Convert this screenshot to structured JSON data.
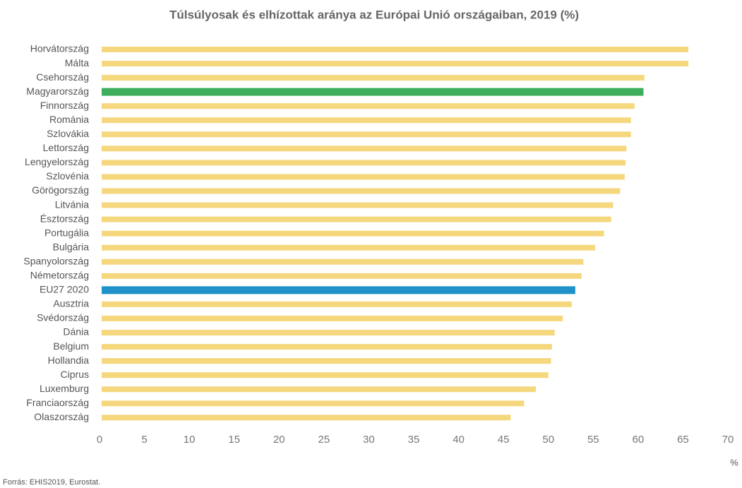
{
  "chart_data": {
    "type": "hbar",
    "title": "Túlsúlyosak és elhízottak aránya az Európai Unió országaiban, 2019 (%)",
    "categories": [
      "Horvátország",
      "Málta",
      "Csehország",
      "Magyarország",
      "Finnország",
      "Románia",
      "Szlovákia",
      "Lettország",
      "Lengyelország",
      "Szlovénia",
      "Görögország",
      "Litvánia",
      "Észtország",
      "Portugália",
      "Bulgária",
      "Spanyolország",
      "Németország",
      "EU27 2020",
      "Ausztria",
      "Svédország",
      "Dánia",
      "Belgium",
      "Hollandia",
      "Ciprus",
      "Luxemburg",
      "Franciaország",
      "Olaszország"
    ],
    "values": [
      65.6,
      65.6,
      60.7,
      60.6,
      59.6,
      59.2,
      59.2,
      58.7,
      58.6,
      58.5,
      58.0,
      57.2,
      57.0,
      56.2,
      55.2,
      53.9,
      53.7,
      53.0,
      52.6,
      51.6,
      50.7,
      50.4,
      50.3,
      50.0,
      48.6,
      47.3,
      45.8
    ],
    "colors": [
      "#f5d77e",
      "#f5d77e",
      "#f5d77e",
      "#3eae5c",
      "#f5d77e",
      "#f5d77e",
      "#f5d77e",
      "#f5d77e",
      "#f5d77e",
      "#f5d77e",
      "#f5d77e",
      "#f5d77e",
      "#f5d77e",
      "#f5d77e",
      "#f5d77e",
      "#f5d77e",
      "#f5d77e",
      "#1f93c9",
      "#f5d77e",
      "#f5d77e",
      "#f5d77e",
      "#f5d77e",
      "#f5d77e",
      "#f5d77e",
      "#f5d77e",
      "#f5d77e",
      "#f5d77e"
    ],
    "xlim": [
      0,
      70
    ],
    "xticks": [
      0,
      5,
      10,
      15,
      20,
      25,
      30,
      35,
      40,
      45,
      50,
      55,
      60,
      65,
      70
    ],
    "x_label": "%",
    "source": "Forrás: EHIS2019, Eurostat."
  }
}
